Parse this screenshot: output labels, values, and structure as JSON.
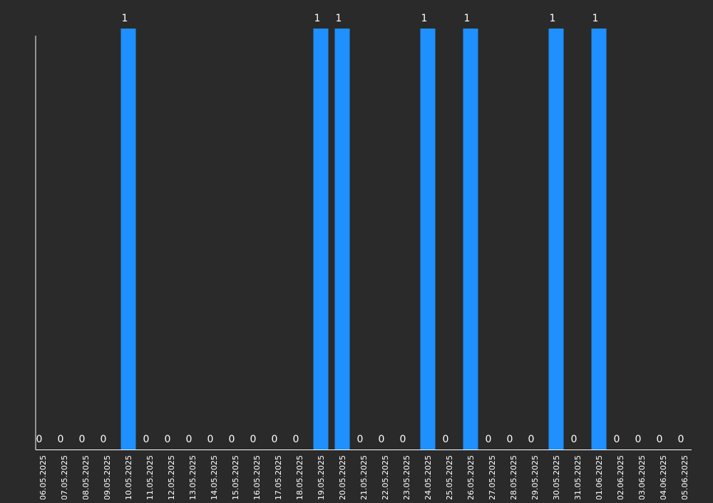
{
  "chart_data": {
    "type": "bar",
    "title": "",
    "xlabel": "",
    "ylabel": "",
    "ylim": [
      0,
      1
    ],
    "grid": false,
    "legend": "none",
    "categories": [
      "06.05.2025",
      "07.05.2025",
      "08.05.2025",
      "09.05.2025",
      "10.05.2025",
      "11.05.2025",
      "12.05.2025",
      "13.05.2025",
      "14.05.2025",
      "15.05.2025",
      "16.05.2025",
      "17.05.2025",
      "18.05.2025",
      "19.05.2025",
      "20.05.2025",
      "21.05.2025",
      "22.05.2025",
      "23.05.2025",
      "24.05.2025",
      "25.05.2025",
      "26.05.2025",
      "27.05.2025",
      "28.05.2025",
      "29.05.2025",
      "30.05.2025",
      "31.05.2025",
      "01.06.2025",
      "02.06.2025",
      "03.06.2025",
      "04.06.2025",
      "05.06.2025"
    ],
    "values": [
      0,
      0,
      0,
      0,
      1,
      0,
      0,
      0,
      0,
      0,
      0,
      0,
      0,
      1,
      1,
      0,
      0,
      0,
      1,
      0,
      1,
      0,
      0,
      0,
      1,
      0,
      1,
      0,
      0,
      0,
      0
    ],
    "value_labels": [
      "0",
      "0",
      "0",
      "0",
      "1",
      "0",
      "0",
      "0",
      "0",
      "0",
      "0",
      "0",
      "0",
      "1",
      "1",
      "0",
      "0",
      "0",
      "1",
      "0",
      "1",
      "0",
      "0",
      "0",
      "1",
      "0",
      "1",
      "0",
      "0",
      "0",
      "0"
    ],
    "colors": {
      "background": "#2a2a2a",
      "bar": "#1e90ff",
      "axis": "#ffffff",
      "text": "#ffffff"
    }
  }
}
